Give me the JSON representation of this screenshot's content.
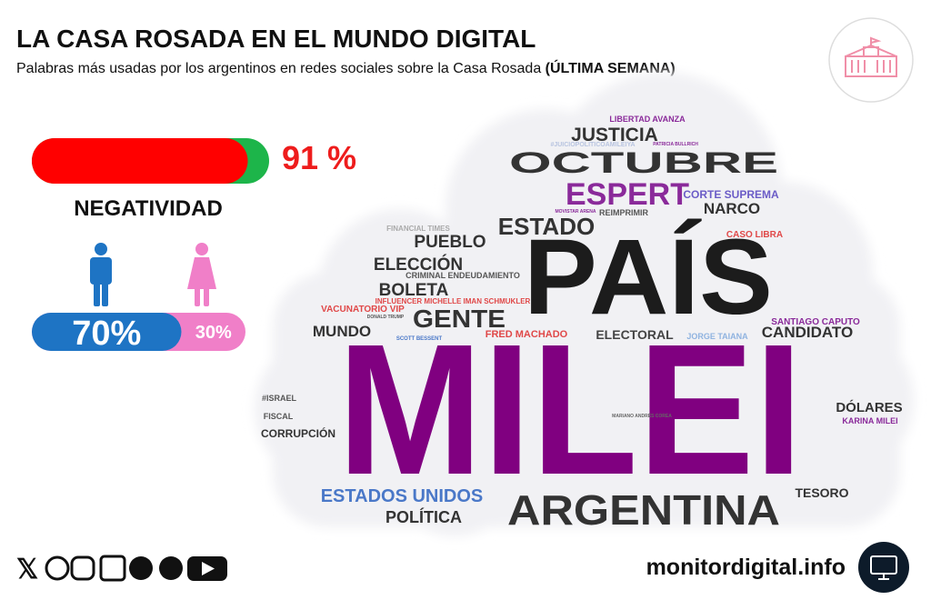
{
  "header": {
    "title": "LA CASA ROSADA EN EL MUNDO DIGITAL",
    "subtitle": "Palabras más usadas por los argentinos en redes sociales sobre la Casa Rosada",
    "subtitle_bold": "(ÚLTIMA SEMANA)"
  },
  "negativity": {
    "label": "NEGATIVIDAD",
    "value": 91,
    "value_label": "91 %"
  },
  "gender": {
    "male": {
      "value": 70,
      "label": "70%"
    },
    "female": {
      "value": 30,
      "label": "30%"
    }
  },
  "word_cloud": {
    "words": [
      "LIBERTAD AVANZA",
      "JUSTICIA",
      "#JUICIOPOLITICOAMILEIYA",
      "PATRICIA BULLRICH",
      "OCTUBRE",
      "ESPERT",
      "MOVISTAR ARENA",
      "CORTE SUPREMA",
      "REIMPRIMIR",
      "NARCO",
      "ESTADO",
      "FINANCIAL TIMES",
      "CASO LIBRA",
      "PUEBLO",
      "PAÍS",
      "ELECCIÓN",
      "CRIMINAL ENDEUDAMIENTO",
      "BOLETA",
      "INFLUENCER MICHELLE IMAN SCHMUKLER",
      "VACUNATORIO VIP",
      "DONALD TRUMP",
      "GENTE",
      "MUNDO",
      "SANTIAGO CAPUTO",
      "FRED MACHADO",
      "SCOTT BESSENT",
      "ELECTORAL",
      "JORGE TAIANA",
      "CANDIDATO",
      "MILEI",
      "#ISRAEL",
      "FISCAL",
      "MARIANO ANDRÉS COREA",
      "DÓLARES",
      "KARINA MILEI",
      "CORRUPCIÓN",
      "ESTADOS UNIDOS",
      "ARGENTINA",
      "TESORO",
      "POLÍTICA"
    ]
  },
  "footer": {
    "site": "monitordigital.info"
  }
}
